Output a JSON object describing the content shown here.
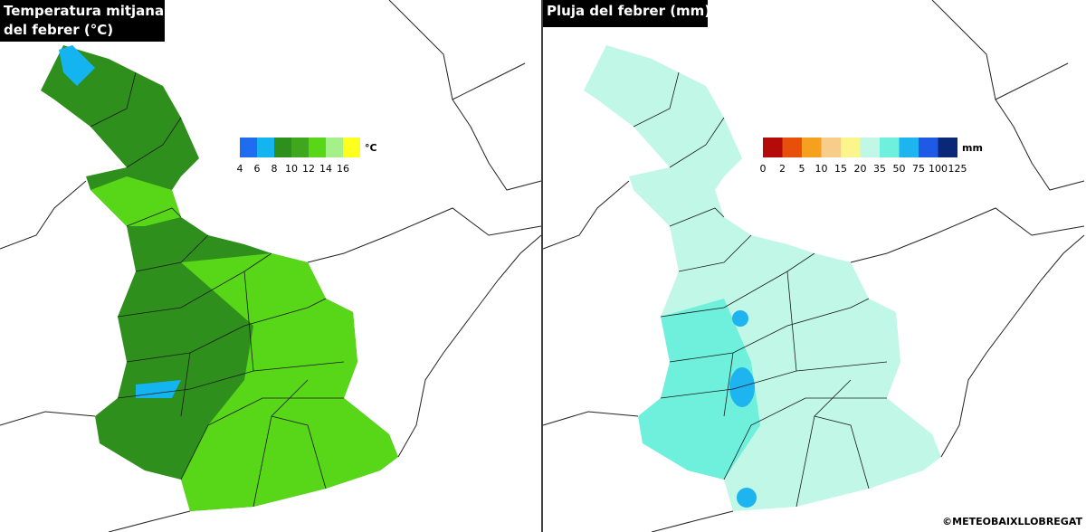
{
  "left_panel": {
    "title_lines": [
      "Temperatura mitjana",
      "del febrer (°C)"
    ],
    "legend": {
      "unit": "°C",
      "ticks": [
        4,
        6,
        8,
        10,
        12,
        14,
        16
      ],
      "colors": [
        "#1e6cf0",
        "#14b4f0",
        "#2f8f1c",
        "#3fa61e",
        "#58d618",
        "#a6f08a",
        "#ffff1e"
      ]
    }
  },
  "right_panel": {
    "title_lines": [
      "Pluja del febrer (mm)"
    ],
    "legend": {
      "unit": "mm",
      "ticks": [
        0,
        2,
        5,
        10,
        15,
        20,
        35,
        50,
        75,
        100,
        125
      ],
      "colors": [
        "#b40a0a",
        "#e8500a",
        "#f5a01e",
        "#f8cd8c",
        "#faf68c",
        "#c0f7e6",
        "#6ff0dc",
        "#1eb4f0",
        "#1e5ae6",
        "#0a2878"
      ]
    }
  },
  "credit": "©METEOBAIXLLOBREGAT"
}
